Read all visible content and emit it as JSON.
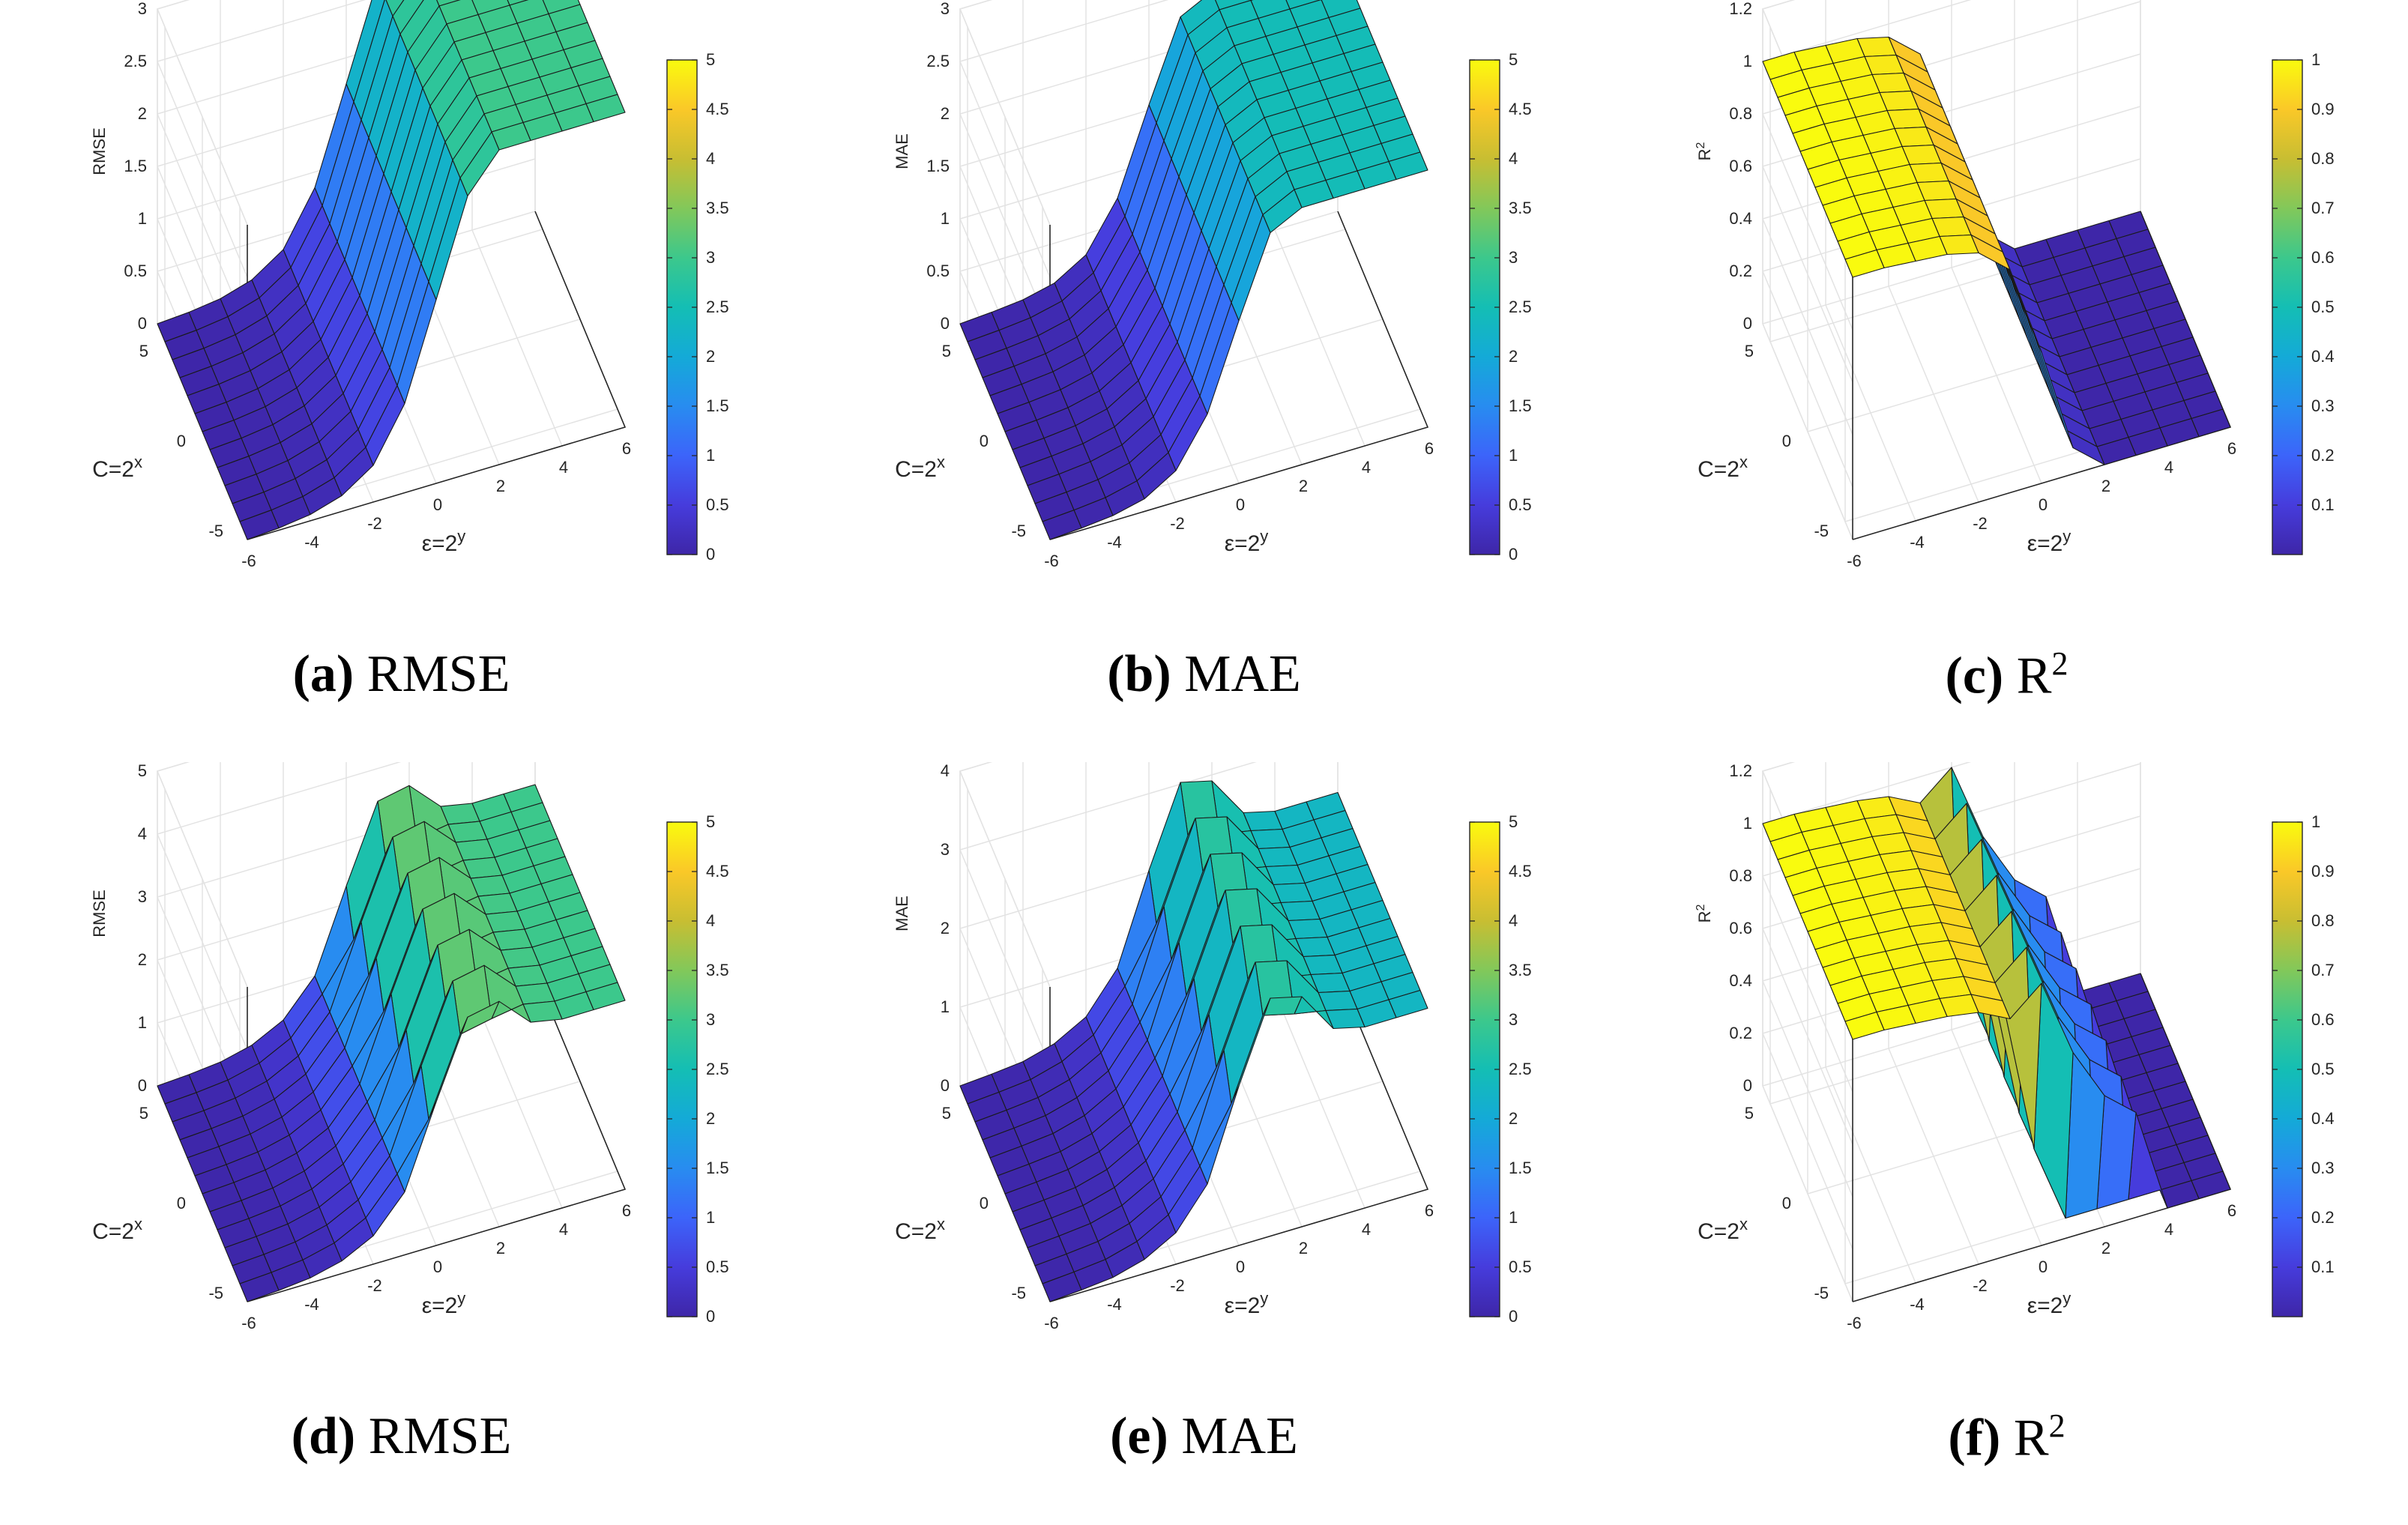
{
  "chart_data": [
    {
      "type": "surface3d",
      "panel": "a",
      "caption_letter": "a",
      "caption_metric": "RMSE",
      "zlabel": "RMSE",
      "xlabel": "ε=2",
      "xlabel_sup": "y",
      "ylabel": "C=2",
      "ylabel_sup": "x",
      "x_ticks": [
        "-6",
        "-4",
        "-2",
        "0",
        "2",
        "4",
        "6"
      ],
      "y_ticks": [
        "-5",
        "0",
        "5"
      ],
      "z_ticks": [
        "0",
        "0.5",
        "1",
        "1.5",
        "2",
        "2.5",
        "3"
      ],
      "zlim": [
        0,
        3
      ],
      "colorbar_ticks": [
        "0",
        "0.5",
        "1",
        "1.5",
        "2",
        "2.5",
        "3",
        "3.5",
        "4",
        "4.5",
        "5"
      ],
      "clim": [
        0,
        5
      ],
      "x": [
        -6,
        -5,
        -4,
        -3,
        -2,
        -1,
        0,
        1,
        2,
        3,
        4,
        5,
        6
      ],
      "profile": [
        0.0,
        0.02,
        0.06,
        0.15,
        0.35,
        0.85,
        1.75,
        2.65,
        3.0,
        3.0,
        3.0,
        3.0,
        3.0
      ],
      "plateau_value": 2.5,
      "ripple": false,
      "flip": false
    },
    {
      "type": "surface3d",
      "panel": "b",
      "caption_letter": "b",
      "caption_metric": "MAE",
      "zlabel": "MAE",
      "xlabel": "ε=2",
      "xlabel_sup": "y",
      "ylabel": "C=2",
      "ylabel_sup": "x",
      "x_ticks": [
        "-6",
        "-4",
        "-2",
        "0",
        "2",
        "4",
        "6"
      ],
      "y_ticks": [
        "-5",
        "0",
        "5"
      ],
      "z_ticks": [
        "0",
        "0.5",
        "1",
        "1.5",
        "2",
        "2.5",
        "3"
      ],
      "zlim": [
        0,
        3
      ],
      "colorbar_ticks": [
        "0",
        "0.5",
        "1",
        "1.5",
        "2",
        "2.5",
        "3",
        "3.5",
        "4",
        "4.5",
        "5"
      ],
      "clim": [
        0,
        5
      ],
      "x": [
        -6,
        -5,
        -4,
        -3,
        -2,
        -1,
        0,
        1,
        2,
        3,
        4,
        5,
        6
      ],
      "profile": [
        0.0,
        0.02,
        0.05,
        0.12,
        0.3,
        0.75,
        1.55,
        2.3,
        2.45,
        2.45,
        2.45,
        2.45,
        2.45
      ],
      "plateau_value": 2.4,
      "ripple": false,
      "flip": false
    },
    {
      "type": "surface3d",
      "panel": "c",
      "caption_letter": "c",
      "caption_metric": "R",
      "caption_sup": "2",
      "zlabel": "R",
      "zlabel_sup": "2",
      "xlabel": "ε=2",
      "xlabel_sup": "y",
      "ylabel": "C=2",
      "ylabel_sup": "x",
      "x_ticks": [
        "-6",
        "-4",
        "-2",
        "0",
        "2",
        "4",
        "6"
      ],
      "y_ticks": [
        "-5",
        "0",
        "5"
      ],
      "z_ticks": [
        "0",
        "0.2",
        "0.4",
        "0.6",
        "0.8",
        "1",
        "1.2"
      ],
      "zlim": [
        0,
        1.2
      ],
      "colorbar_ticks": [
        "0.1",
        "0.2",
        "0.3",
        "0.4",
        "0.5",
        "0.6",
        "0.7",
        "0.8",
        "0.9",
        "1"
      ],
      "clim": [
        0,
        1
      ],
      "x": [
        -6,
        -5,
        -4,
        -3,
        -2,
        -1,
        0,
        1,
        2,
        3,
        4,
        5,
        6
      ],
      "profile": [
        1.0,
        1.0,
        0.99,
        0.98,
        0.95,
        0.85,
        0.5,
        0.1,
        0.0,
        0.0,
        0.0,
        0.0,
        0.0
      ],
      "plateau_value": 0.02,
      "ripple": false,
      "flip": true
    },
    {
      "type": "surface3d",
      "panel": "d",
      "caption_letter": "d",
      "caption_metric": "RMSE",
      "zlabel": "RMSE",
      "xlabel": "ε=2",
      "xlabel_sup": "y",
      "ylabel": "C=2",
      "ylabel_sup": "x",
      "x_ticks": [
        "-6",
        "-4",
        "-2",
        "0",
        "2",
        "4",
        "6"
      ],
      "y_ticks": [
        "-5",
        "0",
        "5"
      ],
      "z_ticks": [
        "0",
        "1",
        "2",
        "3",
        "4",
        "5"
      ],
      "zlim": [
        0,
        5
      ],
      "colorbar_ticks": [
        "0",
        "0.5",
        "1",
        "1.5",
        "2",
        "2.5",
        "3",
        "3.5",
        "4",
        "4.5",
        "5"
      ],
      "clim": [
        0,
        5
      ],
      "x": [
        -6,
        -5,
        -4,
        -3,
        -2,
        -1,
        0,
        1,
        2,
        3,
        4,
        5,
        6
      ],
      "profile": [
        0.0,
        0.03,
        0.08,
        0.2,
        0.45,
        1.0,
        2.0,
        3.2,
        3.3,
        3.1,
        3.0,
        3.0,
        3.0
      ],
      "plateau_value": 2.8,
      "ripple": true,
      "flip": false
    },
    {
      "type": "surface3d",
      "panel": "e",
      "caption_letter": "e",
      "caption_metric": "MAE",
      "zlabel": "MAE",
      "xlabel": "ε=2",
      "xlabel_sup": "y",
      "ylabel": "C=2",
      "ylabel_sup": "x",
      "x_ticks": [
        "-6",
        "-4",
        "-2",
        "0",
        "2",
        "4",
        "6"
      ],
      "y_ticks": [
        "-5",
        "0",
        "5"
      ],
      "z_ticks": [
        "0",
        "1",
        "2",
        "3",
        "4"
      ],
      "zlim": [
        0,
        4
      ],
      "colorbar_ticks": [
        "0",
        "0.5",
        "1",
        "1.5",
        "2",
        "2.5",
        "3",
        "3.5",
        "4",
        "4.5",
        "5"
      ],
      "clim": [
        0,
        5
      ],
      "x": [
        -6,
        -5,
        -4,
        -3,
        -2,
        -1,
        0,
        1,
        2,
        3,
        4,
        5,
        6
      ],
      "profile": [
        0.0,
        0.03,
        0.07,
        0.18,
        0.4,
        0.9,
        1.8,
        2.8,
        2.7,
        2.4,
        2.3,
        2.3,
        2.3
      ],
      "plateau_value": 2.5,
      "ripple": true,
      "flip": false
    },
    {
      "type": "surface3d",
      "panel": "f",
      "caption_letter": "f",
      "caption_metric": "R",
      "caption_sup": "2",
      "zlabel": "R",
      "zlabel_sup": "2",
      "xlabel": "ε=2",
      "xlabel_sup": "y",
      "ylabel": "C=2",
      "ylabel_sup": "x",
      "x_ticks": [
        "-6",
        "-4",
        "-2",
        "0",
        "2",
        "4",
        "6"
      ],
      "y_ticks": [
        "-5",
        "0",
        "5"
      ],
      "z_ticks": [
        "0",
        "0.2",
        "0.4",
        "0.6",
        "0.8",
        "1",
        "1.2"
      ],
      "zlim": [
        0,
        1.2
      ],
      "colorbar_ticks": [
        "0.1",
        "0.2",
        "0.3",
        "0.4",
        "0.5",
        "0.6",
        "0.7",
        "0.8",
        "0.9",
        "1"
      ],
      "clim": [
        0,
        1
      ],
      "x": [
        -6,
        -5,
        -4,
        -3,
        -2,
        -1,
        0,
        1,
        2,
        3,
        4,
        5,
        6
      ],
      "profile": [
        1.0,
        1.0,
        0.99,
        0.98,
        0.96,
        0.9,
        0.65,
        0.35,
        0.15,
        0.05,
        0.0,
        0.0,
        0.0
      ],
      "plateau_value": 0.02,
      "ripple": true,
      "flip": true
    }
  ]
}
